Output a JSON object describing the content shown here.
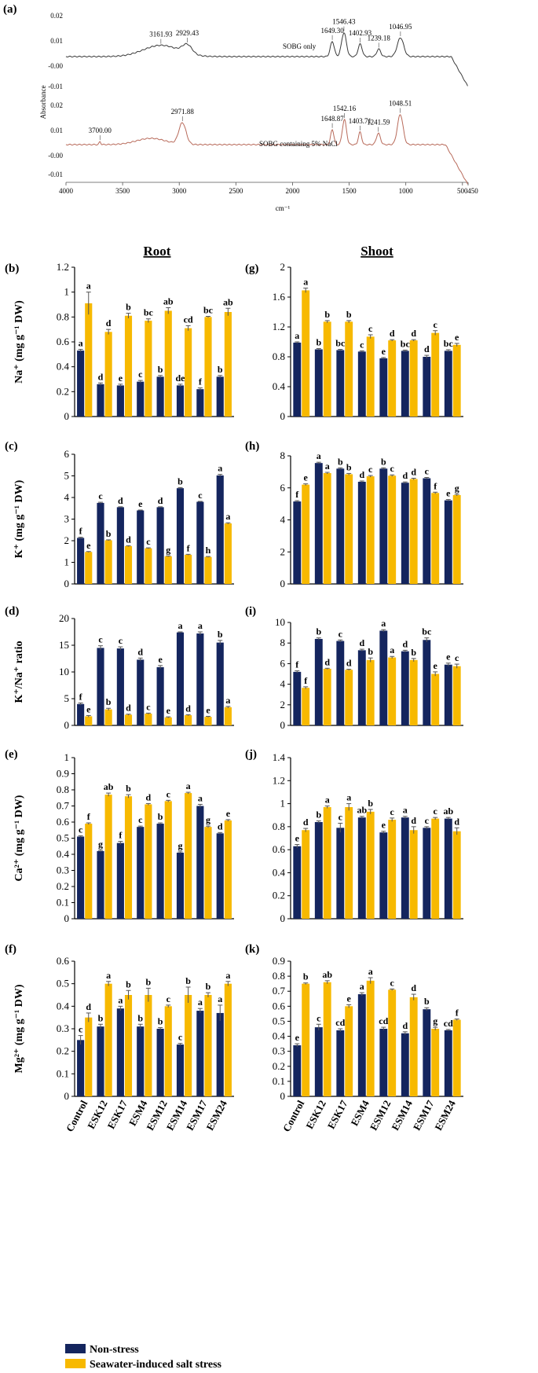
{
  "colors": {
    "non_stress": "#14255e",
    "salt": "#f7b900",
    "axis": "#000000",
    "ftir_top": "#3a3a3a",
    "ftir_bottom": "#b86a5a"
  },
  "headings": {
    "root": "Root",
    "shoot": "Shoot"
  },
  "categories": [
    "Control",
    "ESK12",
    "ESK17",
    "ESM4",
    "ESM12",
    "ESM14",
    "ESM17",
    "ESM24"
  ],
  "legend": {
    "non_stress": "Non-stress",
    "salt": "Seawater-induced  salt stress"
  },
  "ftir": {
    "label": "(a)",
    "ylabel": "Absorbance",
    "xlabel": "cm⁻¹",
    "xticks": [
      "4000",
      "3500",
      "3000",
      "2500",
      "2000",
      "1500",
      "1000",
      "500",
      "450"
    ],
    "top": {
      "name": "SOBG only",
      "yticks": [
        "0.02",
        "0.01",
        "-0.00",
        "-0.01"
      ],
      "peaks": [
        {
          "label": "3161.93",
          "wn": 3162
        },
        {
          "label": "2929.43",
          "wn": 2929
        },
        {
          "label": "1649.30",
          "wn": 1649
        },
        {
          "label": "1546.43",
          "wn": 1546
        },
        {
          "label": "1402.93",
          "wn": 1403
        },
        {
          "label": "1239.18",
          "wn": 1239
        },
        {
          "label": "1046.95",
          "wn": 1047
        }
      ]
    },
    "bottom": {
      "name": "SOBG containing  5% NaCl",
      "yticks": [
        "0.02",
        "0.01",
        "-0.00",
        "-0.01"
      ],
      "peaks": [
        {
          "label": "3700.00",
          "wn": 3700
        },
        {
          "label": "2971.88",
          "wn": 2972
        },
        {
          "label": "1648.87",
          "wn": 1649
        },
        {
          "label": "1542.16",
          "wn": 1542
        },
        {
          "label": "1403.71",
          "wn": 1404
        },
        {
          "label": "1241.59",
          "wn": 1242
        },
        {
          "label": "1048.51",
          "wn": 1049
        }
      ]
    }
  },
  "chart_data": [
    {
      "id": "b",
      "label": "(b)",
      "type": "bar",
      "ylabel": "Na⁺ (mg g⁻¹ DW)",
      "ylim": [
        0,
        1.2
      ],
      "yticks": [
        "0",
        "0.2",
        "0.4",
        "0.6",
        "0.8",
        "1",
        "1.2"
      ],
      "series": [
        {
          "name": "Non-stress",
          "values": [
            0.53,
            0.26,
            0.25,
            0.28,
            0.32,
            0.25,
            0.22,
            0.32
          ],
          "errors": [
            0.01,
            0.01,
            0.01,
            0.01,
            0.01,
            0.01,
            0.01,
            0.01
          ],
          "letters": [
            "a",
            "d",
            "e",
            "c",
            "b",
            "de",
            "f",
            "b"
          ]
        },
        {
          "name": "Seawater-induced salt stress",
          "values": [
            0.91,
            0.68,
            0.81,
            0.77,
            0.85,
            0.71,
            0.8,
            0.84
          ],
          "errors": [
            0.09,
            0.02,
            0.02,
            0.015,
            0.025,
            0.02,
            0.005,
            0.03
          ],
          "letters": [
            "a",
            "d",
            "b",
            "bc",
            "ab",
            "cd",
            "bc",
            "ab"
          ]
        }
      ]
    },
    {
      "id": "g",
      "label": "(g)",
      "type": "bar",
      "ylabel": "",
      "ylim": [
        0,
        2
      ],
      "yticks": [
        "0",
        "0.4",
        "0.8",
        "1.2",
        "1.6",
        "2"
      ],
      "series": [
        {
          "name": "Non-stress",
          "values": [
            0.99,
            0.9,
            0.89,
            0.87,
            0.78,
            0.88,
            0.8,
            0.88
          ],
          "errors": [
            0.01,
            0.01,
            0.01,
            0.01,
            0.01,
            0.01,
            0.02,
            0.015
          ],
          "letters": [
            "a",
            "b",
            "bc",
            "c",
            "e",
            "bc",
            "d",
            "bc"
          ]
        },
        {
          "name": "Seawater-induced salt stress",
          "values": [
            1.69,
            1.27,
            1.27,
            1.07,
            1.02,
            1.02,
            1.12,
            0.96
          ],
          "errors": [
            0.03,
            0.015,
            0.015,
            0.025,
            0.01,
            0.01,
            0.03,
            0.02
          ],
          "letters": [
            "a",
            "b",
            "b",
            "c",
            "d",
            "d",
            "c",
            "e"
          ]
        }
      ]
    },
    {
      "id": "c",
      "label": "(c)",
      "type": "bar",
      "ylabel": "K⁺ (mg g⁻¹ DW)",
      "ylim": [
        0,
        6
      ],
      "yticks": [
        "0",
        "1",
        "2",
        "3",
        "4",
        "5",
        "6"
      ],
      "series": [
        {
          "name": "Non-stress",
          "values": [
            2.13,
            3.75,
            3.55,
            3.4,
            3.55,
            4.43,
            3.8,
            5.02
          ],
          "errors": [
            0.03,
            0.03,
            0.02,
            0.02,
            0.02,
            0.03,
            0.02,
            0.05
          ],
          "letters": [
            "f",
            "c",
            "d",
            "e",
            "d",
            "b",
            "c",
            "a"
          ]
        },
        {
          "name": "Seawater-induced salt stress",
          "values": [
            1.48,
            2.02,
            1.75,
            1.65,
            1.28,
            1.35,
            1.25,
            2.8
          ],
          "errors": [
            0.02,
            0.02,
            0.02,
            0.02,
            0.02,
            0.02,
            0.02,
            0.03
          ],
          "letters": [
            "e",
            "b",
            "d",
            "c",
            "g",
            "f",
            "h",
            "a"
          ]
        }
      ]
    },
    {
      "id": "h",
      "label": "(h)",
      "type": "bar",
      "ylabel": "",
      "ylim": [
        0,
        8
      ],
      "yticks": [
        "0",
        "2",
        "4",
        "6",
        "8"
      ],
      "series": [
        {
          "name": "Non-stress",
          "values": [
            5.15,
            7.55,
            7.2,
            6.38,
            7.2,
            6.32,
            6.6,
            5.22
          ],
          "errors": [
            0.05,
            0.05,
            0.05,
            0.05,
            0.05,
            0.05,
            0.05,
            0.05
          ],
          "letters": [
            "f",
            "a",
            "b",
            "d",
            "b",
            "d",
            "c",
            "e"
          ]
        },
        {
          "name": "Seawater-induced salt stress",
          "values": [
            6.2,
            6.92,
            6.85,
            6.72,
            6.76,
            6.55,
            5.68,
            5.55
          ],
          "errors": [
            0.05,
            0.05,
            0.05,
            0.05,
            0.05,
            0.05,
            0.05,
            0.05
          ],
          "letters": [
            "e",
            "a",
            "b",
            "c",
            "c",
            "d",
            "f",
            "g"
          ]
        }
      ]
    },
    {
      "id": "d",
      "label": "(d)",
      "type": "bar",
      "ylabel": "K⁺/Na⁺ ratio",
      "ylim": [
        0,
        20
      ],
      "yticks": [
        "0",
        "5",
        "10",
        "15",
        "20"
      ],
      "series": [
        {
          "name": "Non-stress",
          "values": [
            4.0,
            14.5,
            14.4,
            12.3,
            10.9,
            17.4,
            17.2,
            15.5
          ],
          "errors": [
            0.2,
            0.4,
            0.3,
            0.3,
            0.3,
            0.1,
            0.3,
            0.4
          ],
          "letters": [
            "f",
            "c",
            "c",
            "d",
            "e",
            "a",
            "a",
            "b"
          ]
        },
        {
          "name": "Seawater-induced salt stress",
          "values": [
            1.7,
            3.0,
            2.0,
            2.2,
            1.5,
            1.9,
            1.6,
            3.4
          ],
          "errors": [
            0.15,
            0.2,
            0.1,
            0.1,
            0.1,
            0.1,
            0.1,
            0.15
          ],
          "letters": [
            "e",
            "b",
            "d",
            "c",
            "e",
            "d",
            "e",
            "a"
          ]
        }
      ]
    },
    {
      "id": "i",
      "label": "(i)",
      "type": "bar",
      "ylabel": "",
      "ylim": [
        0,
        10
      ],
      "yticks": [
        "0",
        "2",
        "4",
        "6",
        "8",
        "10"
      ],
      "series": [
        {
          "name": "Non-stress",
          "values": [
            5.2,
            8.4,
            8.2,
            7.3,
            9.2,
            7.2,
            8.3,
            5.9
          ],
          "errors": [
            0.1,
            0.1,
            0.1,
            0.1,
            0.1,
            0.1,
            0.2,
            0.15
          ],
          "letters": [
            "f",
            "b",
            "c",
            "d",
            "a",
            "d",
            "bc",
            "e"
          ]
        },
        {
          "name": "Seawater-induced salt stress",
          "values": [
            3.65,
            5.5,
            5.4,
            6.35,
            6.6,
            6.35,
            5.0,
            5.75
          ],
          "errors": [
            0.1,
            0.05,
            0.05,
            0.2,
            0.1,
            0.15,
            0.2,
            0.2
          ],
          "letters": [
            "f",
            "d",
            "d",
            "b",
            "a",
            "b",
            "e",
            "c"
          ]
        }
      ]
    },
    {
      "id": "e",
      "label": "(e)",
      "type": "bar",
      "ylabel": "Ca²⁺ (mg g⁻¹ DW)",
      "ylim": [
        0,
        1
      ],
      "yticks": [
        "0",
        "0.1",
        "0.2",
        "0.3",
        "0.4",
        "0.5",
        "0.6",
        "0.7",
        "0.8",
        "0.9",
        "1"
      ],
      "series": [
        {
          "name": "Non-stress",
          "values": [
            0.51,
            0.42,
            0.47,
            0.57,
            0.59,
            0.41,
            0.7,
            0.53
          ],
          "errors": [
            0.005,
            0.005,
            0.01,
            0.005,
            0.005,
            0.005,
            0.01,
            0.005
          ],
          "letters": [
            "c",
            "g",
            "f",
            "c",
            "b",
            "g",
            "a",
            "d"
          ]
        },
        {
          "name": "Seawater-induced salt stress",
          "values": [
            0.59,
            0.77,
            0.76,
            0.71,
            0.73,
            0.78,
            0.57,
            0.61
          ],
          "errors": [
            0.005,
            0.01,
            0.01,
            0.005,
            0.005,
            0.005,
            0.005,
            0.005
          ],
          "letters": [
            "f",
            "ab",
            "b",
            "d",
            "c",
            "a",
            "g",
            "e"
          ]
        }
      ]
    },
    {
      "id": "j",
      "label": "(j)",
      "type": "bar",
      "ylabel": "",
      "ylim": [
        0,
        1.4
      ],
      "yticks": [
        "0",
        "0.2",
        "0.4",
        "0.6",
        "0.8",
        "1",
        "1.2",
        "1.4"
      ],
      "series": [
        {
          "name": "Non-stress",
          "values": [
            0.63,
            0.84,
            0.79,
            0.88,
            0.75,
            0.88,
            0.79,
            0.87
          ],
          "errors": [
            0.015,
            0.01,
            0.04,
            0.01,
            0.01,
            0.01,
            0.01,
            0.01
          ],
          "letters": [
            "e",
            "b",
            "c",
            "ab",
            "e",
            "a",
            "c",
            "ab"
          ]
        },
        {
          "name": "Seawater-induced salt stress",
          "values": [
            0.77,
            0.97,
            0.97,
            0.93,
            0.86,
            0.77,
            0.87,
            0.76
          ],
          "errors": [
            0.015,
            0.01,
            0.03,
            0.02,
            0.015,
            0.03,
            0.01,
            0.03
          ],
          "letters": [
            "d",
            "a",
            "a",
            "b",
            "c",
            "d",
            "c",
            "d"
          ]
        }
      ]
    },
    {
      "id": "f",
      "label": "(f)",
      "type": "bar",
      "ylabel": "Mg²⁺ (mg g⁻¹ DW)",
      "ylim": [
        0,
        0.6
      ],
      "yticks": [
        "0",
        "0.1",
        "0.2",
        "0.3",
        "0.4",
        "0.5",
        "0.6"
      ],
      "series": [
        {
          "name": "Non-stress",
          "values": [
            0.25,
            0.31,
            0.39,
            0.31,
            0.3,
            0.23,
            0.38,
            0.37
          ],
          "errors": [
            0.02,
            0.01,
            0.01,
            0.01,
            0.005,
            0.005,
            0.01,
            0.035
          ],
          "letters": [
            "c",
            "b",
            "a",
            "b",
            "b",
            "c",
            "a",
            "a"
          ]
        },
        {
          "name": "Seawater-induced salt stress",
          "values": [
            0.35,
            0.5,
            0.45,
            0.45,
            0.4,
            0.45,
            0.45,
            0.5
          ],
          "errors": [
            0.02,
            0.01,
            0.02,
            0.03,
            0.005,
            0.035,
            0.01,
            0.01
          ],
          "letters": [
            "d",
            "a",
            "b",
            "b",
            "c",
            "b",
            "b",
            "a"
          ]
        }
      ]
    },
    {
      "id": "k",
      "label": "(k)",
      "type": "bar",
      "ylabel": "",
      "ylim": [
        0,
        0.9
      ],
      "yticks": [
        "0",
        "0.1",
        "0.2",
        "0.3",
        "0.4",
        "0.5",
        "0.6",
        "0.7",
        "0.8",
        "0.9"
      ],
      "series": [
        {
          "name": "Non-stress",
          "values": [
            0.34,
            0.46,
            0.44,
            0.68,
            0.45,
            0.42,
            0.58,
            0.44
          ],
          "errors": [
            0.01,
            0.02,
            0.01,
            0.01,
            0.01,
            0.01,
            0.01,
            0.005
          ],
          "letters": [
            "e",
            "c",
            "cd",
            "a",
            "cd",
            "d",
            "b",
            "cd"
          ]
        },
        {
          "name": "Seawater-induced salt stress",
          "values": [
            0.75,
            0.76,
            0.6,
            0.77,
            0.71,
            0.66,
            0.45,
            0.51
          ],
          "errors": [
            0.005,
            0.01,
            0.01,
            0.02,
            0.005,
            0.02,
            0.01,
            0.005
          ],
          "letters": [
            "b",
            "ab",
            "e",
            "a",
            "c",
            "d",
            "g",
            "f"
          ]
        }
      ]
    }
  ]
}
